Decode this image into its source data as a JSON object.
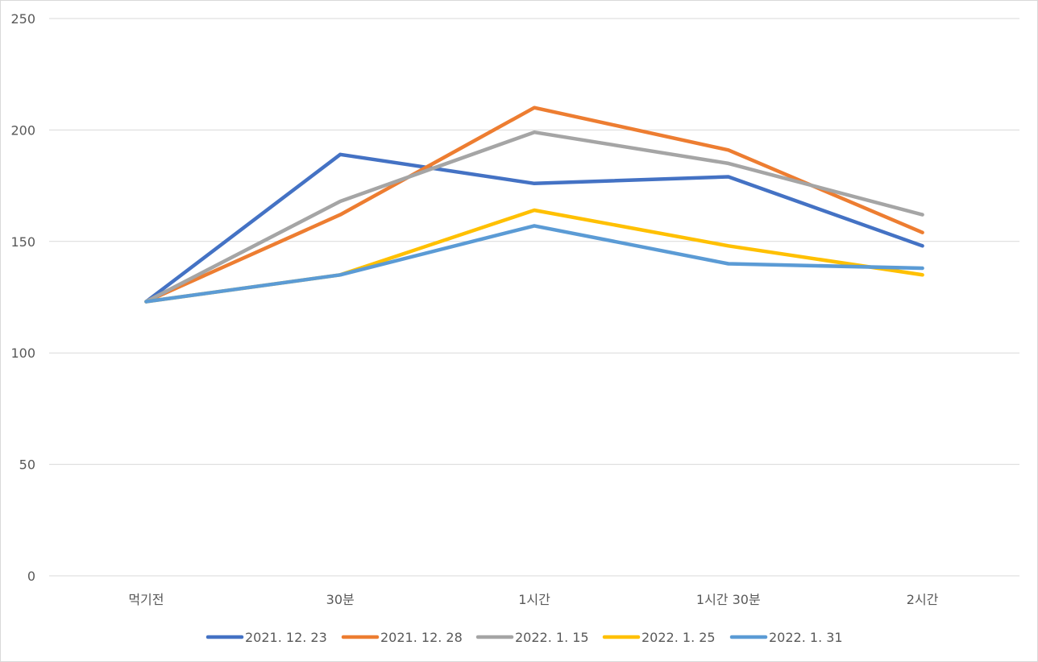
{
  "chart_data": {
    "type": "line",
    "title": "",
    "xlabel": "",
    "ylabel": "",
    "categories": [
      "먹기전",
      "30분",
      "1시간",
      "1시간 30분",
      "2시간"
    ],
    "ylim": [
      0,
      250
    ],
    "yticks": [
      0,
      50,
      100,
      150,
      200,
      250
    ],
    "grid": true,
    "legend_position": "bottom",
    "series": [
      {
        "name": "2021. 12. 23",
        "color": "#4472C4",
        "values": [
          123,
          189,
          176,
          179,
          148
        ]
      },
      {
        "name": "2021. 12. 28",
        "color": "#ED7D31",
        "values": [
          123,
          162,
          210,
          191,
          154
        ]
      },
      {
        "name": "2022. 1. 15",
        "color": "#A5A5A5",
        "values": [
          123,
          168,
          199,
          185,
          162
        ]
      },
      {
        "name": "2022. 1. 25",
        "color": "#FFC000",
        "values": [
          123,
          135,
          164,
          148,
          135
        ]
      },
      {
        "name": "2022. 1. 31",
        "color": "#5B9BD5",
        "values": [
          123,
          135,
          157,
          140,
          138
        ]
      }
    ]
  }
}
